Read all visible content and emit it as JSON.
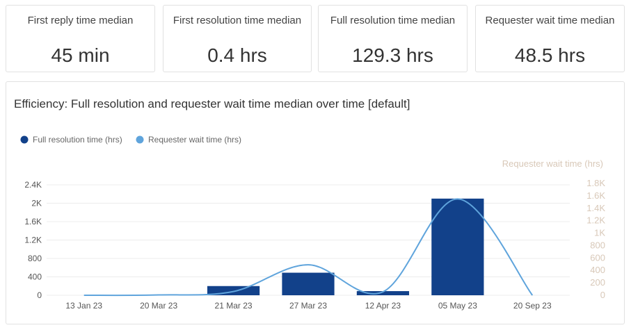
{
  "kpis": [
    {
      "label": "First reply time median",
      "value": "45 min"
    },
    {
      "label": "First resolution time median",
      "value": "0.4 hrs"
    },
    {
      "label": "Full resolution time median",
      "value": "129.3 hrs"
    },
    {
      "label": "Requester wait time median",
      "value": "48.5 hrs"
    }
  ],
  "panel": {
    "title": "Efficiency: Full resolution and requester wait time median over time [default]"
  },
  "chart_data": {
    "type": "bar",
    "categories": [
      "13 Jan 23",
      "20 Mar 23",
      "21 Mar 23",
      "27 Mar 23",
      "12 Apr 23",
      "05 May 23",
      "20 Sep 23"
    ],
    "series": [
      {
        "name": "Full resolution time (hrs)",
        "type": "bar",
        "axis": "left",
        "color": "#12418a",
        "values": [
          0,
          0,
          200,
          490,
          90,
          2100,
          0
        ]
      },
      {
        "name": "Requester wait time (hrs)",
        "type": "line",
        "axis": "right",
        "color": "#5fa4dc",
        "values": [
          0,
          5,
          60,
          490,
          55,
          1550,
          0
        ]
      }
    ],
    "yaxis_left": {
      "ticks": [
        "0",
        "400",
        "800",
        "1.2K",
        "1.6K",
        "2K",
        "2.4K"
      ],
      "values": [
        0,
        400,
        800,
        1200,
        1600,
        2000,
        2400
      ],
      "ylim": [
        0,
        2400
      ]
    },
    "yaxis_right": {
      "title": "Requester wait time (hrs)",
      "ticks": [
        "0",
        "200",
        "400",
        "600",
        "800",
        "1K",
        "1.2K",
        "1.4K",
        "1.6K",
        "1.8K"
      ],
      "values": [
        0,
        200,
        400,
        600,
        800,
        1000,
        1200,
        1400,
        1600,
        1800
      ],
      "ylim": [
        0,
        1800
      ]
    },
    "legend_position": "top-left",
    "grid": true
  }
}
